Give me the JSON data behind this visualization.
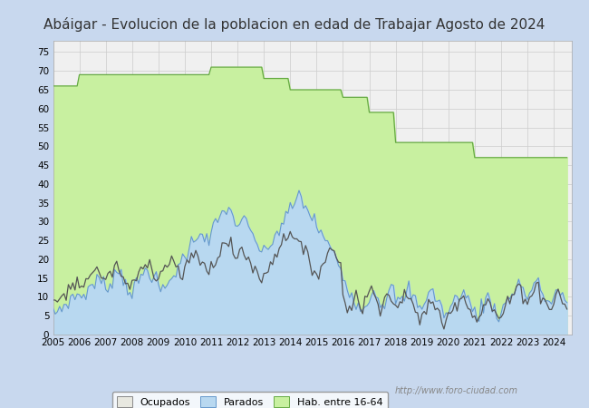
{
  "title": "Abáigar - Evolucion de la poblacion en edad de Trabajar Agosto de 2024",
  "title_color": "#333333",
  "title_fontsize": 11,
  "ylim": [
    0,
    78
  ],
  "yticks": [
    0,
    5,
    10,
    15,
    20,
    25,
    30,
    35,
    40,
    45,
    50,
    55,
    60,
    65,
    70,
    75
  ],
  "grid_color": "#cccccc",
  "outer_bg": "#c8d8ee",
  "plot_bg": "#f0f0f0",
  "legend_labels": [
    "Ocupados",
    "Parados",
    "Hab. entre 16-64"
  ],
  "watermark": "http://www.foro-ciudad.com",
  "hab_color": "#c8f0a0",
  "hab_line_color": "#66aa44",
  "parados_color": "#b8d8f0",
  "parados_line_color": "#6699cc",
  "ocupados_line_color": "#555555",
  "hab_values": [
    66,
    66,
    66,
    66,
    66,
    66,
    66,
    66,
    66,
    66,
    66,
    66,
    69,
    69,
    69,
    69,
    69,
    69,
    69,
    69,
    69,
    69,
    69,
    69,
    69,
    69,
    69,
    69,
    69,
    69,
    69,
    69,
    69,
    69,
    69,
    69,
    69,
    69,
    69,
    69,
    69,
    69,
    69,
    69,
    69,
    69,
    69,
    69,
    69,
    69,
    69,
    69,
    69,
    69,
    69,
    69,
    69,
    69,
    69,
    69,
    69,
    69,
    69,
    69,
    69,
    69,
    69,
    69,
    69,
    69,
    69,
    69,
    71,
    71,
    71,
    71,
    71,
    71,
    71,
    71,
    71,
    71,
    71,
    71,
    71,
    71,
    71,
    71,
    71,
    71,
    71,
    71,
    71,
    71,
    71,
    71,
    68,
    68,
    68,
    68,
    68,
    68,
    68,
    68,
    68,
    68,
    68,
    68,
    65,
    65,
    65,
    65,
    65,
    65,
    65,
    65,
    65,
    65,
    65,
    65,
    65,
    65,
    65,
    65,
    65,
    65,
    65,
    65,
    65,
    65,
    65,
    65,
    63,
    63,
    63,
    63,
    63,
    63,
    63,
    63,
    63,
    63,
    63,
    63,
    59,
    59,
    59,
    59,
    59,
    59,
    59,
    59,
    59,
    59,
    59,
    59,
    51,
    51,
    51,
    51,
    51,
    51,
    51,
    51,
    51,
    51,
    51,
    51,
    51,
    51,
    51,
    51,
    51,
    51,
    51,
    51,
    51,
    51,
    51,
    51,
    51,
    51,
    51,
    51,
    51,
    51,
    51,
    51,
    51,
    51,
    51,
    51,
    47,
    47,
    47,
    47,
    47,
    47,
    47,
    47,
    47,
    47,
    47,
    47,
    47,
    47,
    47,
    47,
    47,
    47,
    47,
    47,
    47,
    47,
    47,
    47,
    47,
    47,
    47,
    47,
    47,
    47,
    47,
    47,
    47,
    47,
    47,
    47,
    47,
    47,
    47,
    47,
    47
  ],
  "parados_values": [
    5,
    6,
    6,
    7,
    7,
    8,
    8,
    9,
    9,
    10,
    10,
    11,
    10,
    10,
    11,
    11,
    12,
    13,
    13,
    14,
    14,
    15,
    14,
    13,
    12,
    13,
    14,
    15,
    16,
    17,
    17,
    16,
    15,
    14,
    13,
    12,
    11,
    12,
    13,
    14,
    15,
    16,
    17,
    18,
    17,
    16,
    15,
    14,
    13,
    12,
    11,
    12,
    13,
    14,
    15,
    16,
    17,
    18,
    19,
    20,
    21,
    22,
    23,
    24,
    25,
    26,
    27,
    28,
    27,
    26,
    25,
    24,
    27,
    28,
    29,
    30,
    31,
    32,
    33,
    34,
    33,
    32,
    31,
    30,
    29,
    30,
    31,
    30,
    29,
    28,
    27,
    26,
    25,
    24,
    23,
    22,
    21,
    22,
    23,
    24,
    25,
    26,
    27,
    28,
    29,
    30,
    31,
    32,
    33,
    34,
    35,
    36,
    37,
    36,
    35,
    34,
    33,
    32,
    31,
    30,
    29,
    28,
    27,
    26,
    25,
    24,
    23,
    22,
    21,
    20,
    19,
    18,
    15,
    14,
    13,
    12,
    11,
    10,
    9,
    8,
    7,
    6,
    8,
    9,
    10,
    11,
    12,
    11,
    10,
    9,
    8,
    9,
    10,
    11,
    12,
    11,
    10,
    9,
    8,
    9,
    10,
    11,
    12,
    11,
    10,
    9,
    8,
    7,
    8,
    9,
    10,
    11,
    12,
    11,
    10,
    9,
    8,
    7,
    6,
    5,
    6,
    7,
    8,
    9,
    10,
    11,
    12,
    11,
    10,
    9,
    8,
    7,
    6,
    5,
    6,
    7,
    8,
    9,
    10,
    9,
    8,
    7,
    6,
    5,
    6,
    7,
    8,
    9,
    10,
    11,
    12,
    13,
    14,
    13,
    12,
    11,
    10,
    11,
    12,
    13,
    14,
    13,
    12,
    11,
    10,
    9,
    8,
    9,
    10,
    11,
    12,
    11,
    10,
    9,
    8,
    14
  ],
  "ocupados_values": [
    8,
    8,
    9,
    10,
    10,
    11,
    11,
    12,
    12,
    13,
    13,
    14,
    13,
    13,
    14,
    15,
    15,
    16,
    16,
    17,
    17,
    17,
    16,
    15,
    14,
    15,
    16,
    17,
    18,
    18,
    17,
    16,
    15,
    14,
    13,
    12,
    13,
    14,
    15,
    16,
    17,
    18,
    19,
    20,
    19,
    18,
    17,
    16,
    15,
    16,
    17,
    18,
    19,
    20,
    20,
    19,
    18,
    17,
    16,
    15,
    17,
    18,
    19,
    20,
    21,
    22,
    21,
    20,
    19,
    18,
    17,
    16,
    18,
    19,
    20,
    21,
    22,
    23,
    24,
    25,
    24,
    23,
    22,
    21,
    20,
    22,
    23,
    22,
    21,
    20,
    19,
    18,
    17,
    16,
    15,
    14,
    16,
    17,
    18,
    19,
    20,
    21,
    22,
    23,
    24,
    25,
    26,
    27,
    28,
    27,
    26,
    25,
    24,
    23,
    22,
    21,
    20,
    19,
    18,
    17,
    16,
    17,
    18,
    19,
    20,
    21,
    22,
    23,
    22,
    21,
    20,
    19,
    10,
    9,
    8,
    7,
    8,
    9,
    10,
    9,
    8,
    7,
    9,
    10,
    11,
    12,
    11,
    10,
    9,
    8,
    9,
    10,
    11,
    10,
    9,
    8,
    7,
    8,
    9,
    10,
    11,
    10,
    9,
    8,
    7,
    6,
    5,
    4,
    5,
    6,
    7,
    8,
    9,
    8,
    7,
    6,
    5,
    4,
    3,
    4,
    5,
    6,
    7,
    8,
    9,
    10,
    11,
    10,
    9,
    8,
    7,
    6,
    5,
    4,
    5,
    6,
    7,
    8,
    9,
    8,
    7,
    6,
    5,
    4,
    5,
    6,
    7,
    8,
    9,
    10,
    11,
    12,
    13,
    12,
    11,
    10,
    9,
    10,
    11,
    12,
    13,
    12,
    11,
    10,
    9,
    8,
    7,
    8,
    9,
    10,
    11,
    10,
    9,
    8,
    7,
    14
  ]
}
